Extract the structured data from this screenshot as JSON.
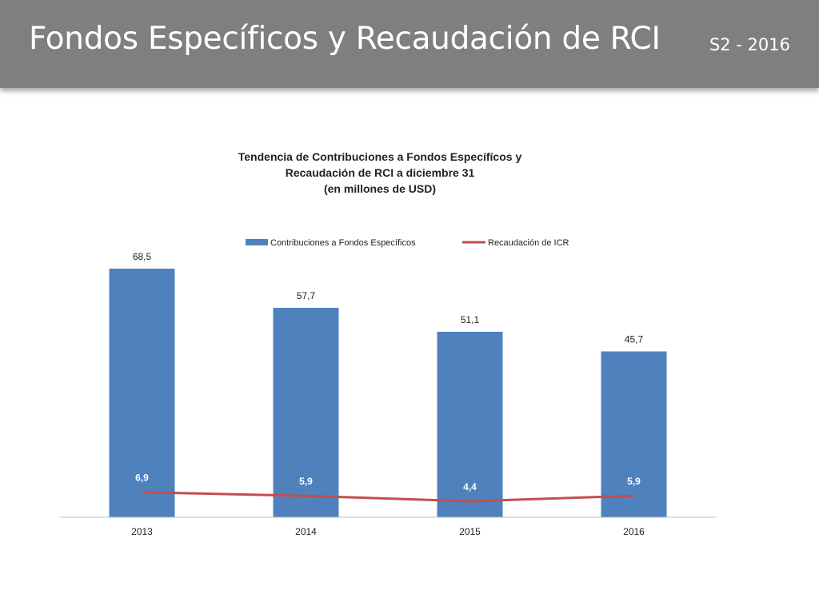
{
  "header": {
    "title": "Fondos Específicos y Recaudación de RCI",
    "subtitle": "S2 - 2016"
  },
  "chart_data": {
    "type": "bar",
    "title_lines": [
      "Tendencia de Contribuciones a Fondos Específícos y",
      "Recaudación de RCI a diciembre 31",
      "(en millones de USD)"
    ],
    "categories": [
      "2013",
      "2014",
      "2015",
      "2016"
    ],
    "series": [
      {
        "name": "Contribuciones a Fondos Específicos",
        "type": "bar",
        "color": "#4f81bd",
        "values": [
          68.5,
          57.7,
          51.1,
          45.7
        ],
        "labels": [
          "68,5",
          "57,7",
          "51,1",
          "45,7"
        ]
      },
      {
        "name": "Recaudación de ICR",
        "type": "line",
        "color": "#c0504d",
        "values": [
          6.9,
          5.9,
          4.4,
          5.9
        ],
        "labels": [
          "6,9",
          "5,9",
          "4,4",
          "5,9"
        ]
      }
    ],
    "ylim": [
      0,
      70
    ],
    "grid": false,
    "legend_position": "top"
  }
}
